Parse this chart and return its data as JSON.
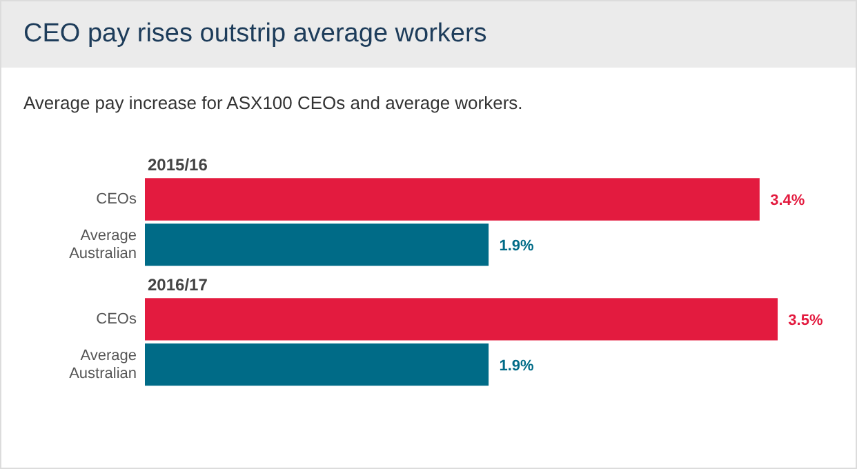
{
  "chart_data": {
    "type": "bar",
    "orientation": "horizontal",
    "title": "CEO pay rises outstrip average workers",
    "subtitle": "Average pay increase for ASX100 CEOs and average workers.",
    "annotations": [
      "2015/16",
      "2016/17"
    ],
    "categories": [
      "CEOs",
      "Average Australian",
      "CEOs",
      "Average Australian"
    ],
    "values": [
      3.4,
      1.9,
      3.5,
      1.9
    ],
    "colors": [
      "#e31b3f",
      "#006b87",
      "#e31b3f",
      "#006b87"
    ],
    "value_labels": [
      "3.4%",
      "1.9%",
      "3.5%",
      "1.9%"
    ],
    "grid": false,
    "legend": false
  }
}
